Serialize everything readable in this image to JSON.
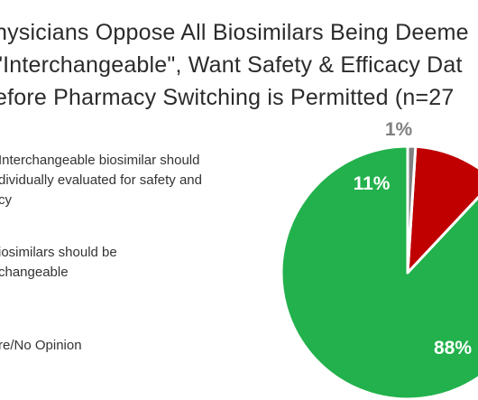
{
  "title_lines": [
    "hysicians Oppose All Biosimilars Being Deeme",
    "\"Interchangeable\", Want Safety & Efficacy Dat",
    "efore Pharmacy Switching is Permitted (n=27"
  ],
  "legend": [
    {
      "lines": [
        "Interchangeable biosimilar should",
        "dividually evaluated for safety and",
        "cy"
      ]
    },
    {
      "lines": [
        "iosimilars should be",
        "changeable"
      ]
    },
    {
      "lines": [
        "re/No Opinion"
      ]
    }
  ],
  "chart_data": {
    "type": "pie",
    "title": "hysicians Oppose All Biosimilars Being Deeme \"Interchangeable\", Want Safety & Efficacy Dat efore Pharmacy Switching is Permitted (n=27",
    "slices": [
      {
        "label": "Interchangeable biosimilar should dividually evaluated for safety and cy",
        "value": 88,
        "display": "88%",
        "color": "#22b14c"
      },
      {
        "label": "iosimilars should be changeable",
        "value": 11,
        "display": "11%",
        "color": "#c00000"
      },
      {
        "label": "re/No Opinion",
        "value": 1,
        "display": "1%",
        "color": "#808080"
      }
    ],
    "start": "12 o'clock",
    "direction": "counter-clockwise",
    "label_colors": [
      "#ffffff",
      "#ffffff",
      "#808080"
    ]
  }
}
